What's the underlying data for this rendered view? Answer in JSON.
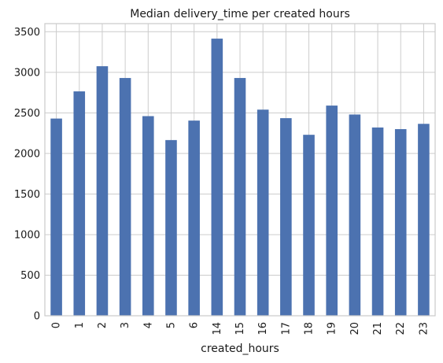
{
  "chart_data": {
    "type": "bar",
    "title": "Median delivery_time per created hours",
    "xlabel": "created_hours",
    "ylabel": "",
    "categories": [
      "0",
      "1",
      "2",
      "3",
      "4",
      "5",
      "6",
      "14",
      "15",
      "16",
      "17",
      "18",
      "19",
      "20",
      "21",
      "22",
      "23"
    ],
    "values": [
      2430,
      2765,
      3075,
      2930,
      2460,
      2165,
      2405,
      3415,
      2930,
      2540,
      2435,
      2230,
      2590,
      2480,
      2320,
      2300,
      2365
    ],
    "ylim": [
      0,
      3600
    ],
    "yticks": [
      "0",
      "500",
      "1000",
      "1500",
      "2000",
      "2500",
      "3000",
      "3500"
    ],
    "grid": true,
    "bar_color": "#4c72b0",
    "grid_color": "#cccccc",
    "axes_edge_color": "#cccccc"
  }
}
